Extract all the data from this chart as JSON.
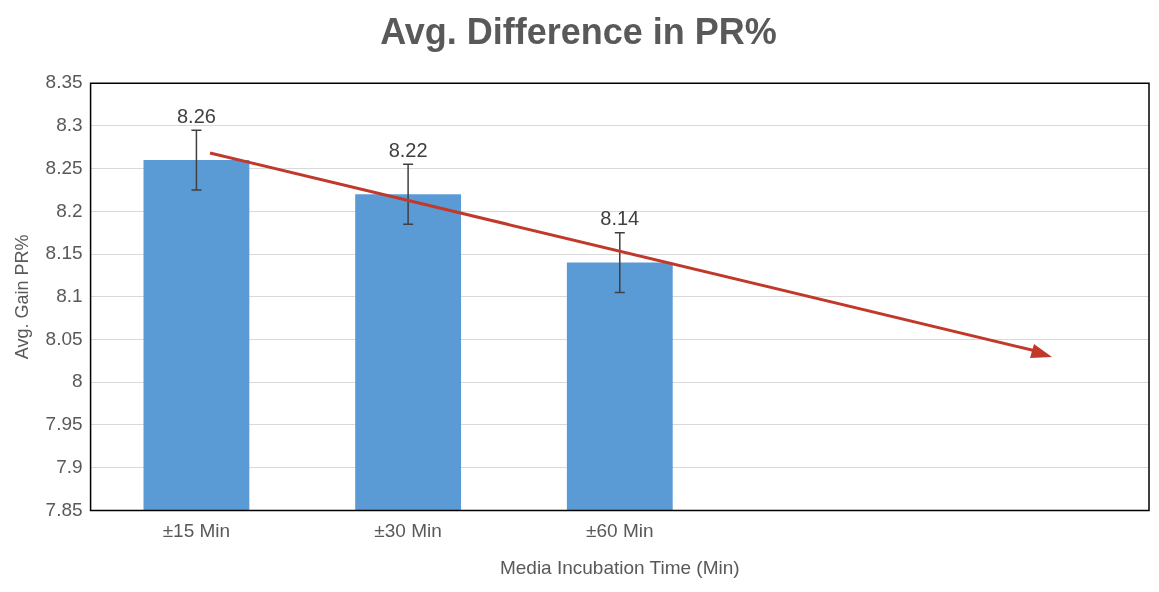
{
  "chart_data": {
    "type": "bar",
    "title": "Avg. Difference in PR%",
    "xlabel": "Media Incubation Time (Min)",
    "ylabel": "Avg. Gain PR%",
    "categories": [
      "±15 Min",
      "±30 Min",
      "±60 Min",
      null,
      null
    ],
    "values": [
      8.26,
      8.22,
      8.14,
      null,
      null
    ],
    "errors": [
      0.035,
      0.035,
      0.035,
      null,
      null
    ],
    "color": "#5b9bd5",
    "ylim": [
      7.85,
      8.35
    ],
    "yticks": [
      7.85,
      7.9,
      7.95,
      8,
      8.05,
      8.1,
      8.15,
      8.2,
      8.25,
      8.3,
      8.35
    ],
    "grid": "y",
    "data_labels": true,
    "legend": false
  }
}
